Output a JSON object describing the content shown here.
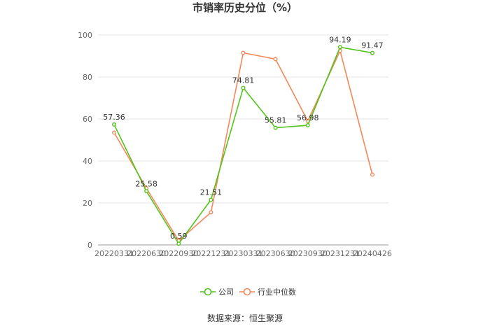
{
  "chart_data": {
    "type": "line",
    "title": "市销率历史分位（%）",
    "categories": [
      "20220331",
      "20220630",
      "20220930",
      "20221231",
      "20230331",
      "20230630",
      "20230930",
      "20231231",
      "20240426"
    ],
    "ylim": [
      0,
      100
    ],
    "yticks": [
      0,
      20,
      40,
      60,
      80,
      100
    ],
    "grid": true,
    "legend_position": "bottom",
    "series": [
      {
        "name": "公司",
        "color": "#52c41a",
        "values": [
          57.36,
          25.58,
          0.59,
          21.51,
          74.81,
          55.81,
          56.98,
          94.19,
          91.47
        ],
        "labels": [
          "57.36",
          "25.58",
          "0.59",
          "21.51",
          "74.81",
          "55.81",
          "56.98",
          "94.19",
          "91.47"
        ]
      },
      {
        "name": "行业中位数",
        "color": "#f5875a",
        "values": [
          53.5,
          27.0,
          2.0,
          15.5,
          91.5,
          88.5,
          59.0,
          92.5,
          33.5
        ]
      }
    ],
    "source": "数据来源：恒生聚源"
  }
}
